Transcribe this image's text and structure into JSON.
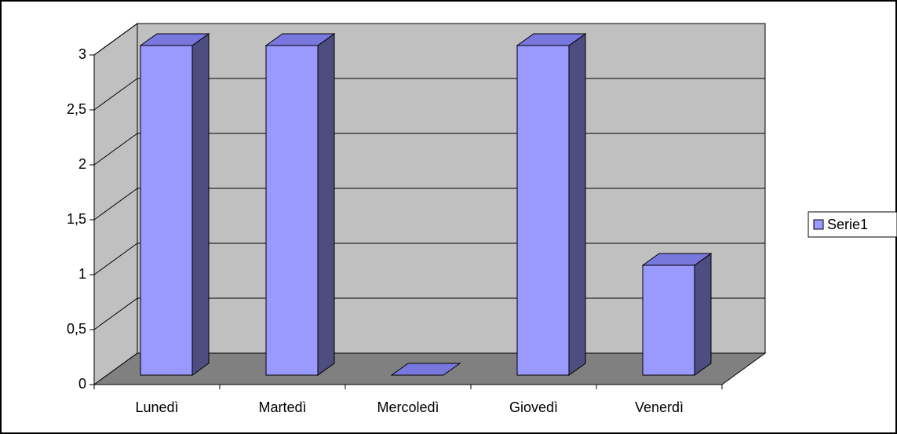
{
  "chart_data": {
    "type": "bar3d",
    "categories": [
      "Lunedì",
      "Martedì",
      "Mercoledì",
      "Giovedì",
      "Venerdì"
    ],
    "series": [
      {
        "name": "Serie1",
        "color": "#9999ff",
        "values": [
          3,
          3,
          0,
          3,
          1
        ]
      }
    ],
    "ylim": [
      0,
      3
    ],
    "yticks": [
      0,
      {
        "value": 0.5,
        "label": "0,5"
      },
      1,
      {
        "value": 1.5,
        "label": "1,5"
      },
      2,
      {
        "value": 2.5,
        "label": "2,5"
      },
      3
    ],
    "grid": true,
    "legend": "right"
  }
}
